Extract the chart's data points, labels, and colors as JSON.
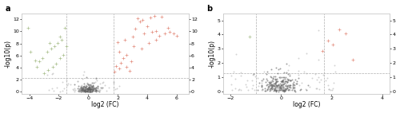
{
  "panel_a": {
    "xlim": [
      -4.5,
      6.8
    ],
    "ylim": [
      -0.3,
      13
    ],
    "xticks": [
      -4,
      -2,
      0,
      2,
      4,
      6
    ],
    "yticks": [
      0,
      2,
      4,
      6,
      8,
      10,
      12
    ],
    "xlabel": "log2 (FC)",
    "ylabel": "-log10(p)",
    "vline1": -1.5,
    "vline2": 1.7,
    "hline": 2.3,
    "label": "a",
    "red_dots": [
      [
        1.9,
        4.2
      ],
      [
        2.0,
        8.2
      ],
      [
        2.2,
        4.8
      ],
      [
        2.5,
        8.6
      ],
      [
        2.6,
        4.1
      ],
      [
        2.8,
        3.5
      ],
      [
        3.0,
        9.1
      ],
      [
        3.2,
        10.5
      ],
      [
        3.35,
        12.2
      ],
      [
        3.5,
        11.6
      ],
      [
        3.7,
        11.9
      ],
      [
        3.8,
        9.6
      ],
      [
        4.0,
        10.9
      ],
      [
        4.2,
        12.3
      ],
      [
        4.3,
        9.9
      ],
      [
        4.5,
        12.6
      ],
      [
        4.6,
        10.1
      ],
      [
        4.8,
        9.3
      ],
      [
        5.0,
        12.4
      ],
      [
        5.2,
        9.6
      ],
      [
        5.4,
        10.6
      ],
      [
        5.5,
        9.9
      ],
      [
        5.8,
        9.6
      ],
      [
        6.0,
        9.3
      ],
      [
        2.1,
        6.6
      ],
      [
        2.6,
        6.1
      ],
      [
        3.1,
        7.6
      ],
      [
        3.6,
        7.1
      ],
      [
        4.1,
        8.1
      ],
      [
        4.6,
        8.6
      ],
      [
        1.8,
        3.3
      ],
      [
        2.1,
        3.9
      ],
      [
        2.4,
        5.6
      ],
      [
        2.9,
        5.1
      ]
    ],
    "green_dots": [
      [
        -1.6,
        10.6
      ],
      [
        -1.9,
        9.1
      ],
      [
        -2.1,
        8.1
      ],
      [
        -2.3,
        7.6
      ],
      [
        -2.5,
        7.1
      ],
      [
        -2.8,
        6.6
      ],
      [
        -3.1,
        5.6
      ],
      [
        -3.3,
        5.1
      ],
      [
        -3.6,
        5.2
      ],
      [
        -4.1,
        10.6
      ],
      [
        -1.7,
        6.1
      ],
      [
        -1.9,
        5.6
      ],
      [
        -2.2,
        4.6
      ],
      [
        -2.4,
        4.1
      ],
      [
        -2.7,
        3.6
      ],
      [
        -3.0,
        3.1
      ],
      [
        -3.5,
        4.1
      ],
      [
        -3.9,
        6.6
      ],
      [
        -1.8,
        8.6
      ],
      [
        -2.6,
        8.1
      ],
      [
        -1.5,
        7.5
      ]
    ],
    "gray_cluster_seed": 42,
    "gray_cluster_count": 180,
    "gray_scatter_seed": 7,
    "gray_scatter_count": 60
  },
  "panel_b": {
    "xlim": [
      -2.3,
      4.3
    ],
    "ylim": [
      -0.15,
      5.5
    ],
    "xticks": [
      -2,
      0,
      2,
      4
    ],
    "yticks": [
      0,
      1,
      2,
      3,
      4,
      5
    ],
    "xlabel": "log2 (FC)",
    "ylabel": "-log10(p)",
    "vline1": -1.0,
    "vline2": 1.7,
    "hline": 1.3,
    "label": "b",
    "red_dots": [
      [
        1.85,
        3.6
      ],
      [
        2.05,
        3.3
      ],
      [
        2.3,
        4.35
      ],
      [
        2.55,
        4.1
      ],
      [
        1.65,
        2.85
      ],
      [
        2.85,
        2.25
      ]
    ],
    "green_dots": [
      [
        -1.25,
        3.85
      ]
    ],
    "gray_cluster_seed": 12,
    "gray_cluster_count": 220,
    "gray_scatter_seed": 99,
    "gray_scatter_count": 80
  },
  "marker": "+",
  "marker_size_colored": 7,
  "marker_size_gray": 2,
  "red_color": "#E08070",
  "green_color": "#A0B880",
  "gray_color_light": "#B0B0B0",
  "gray_color_dark": "#606060",
  "line_color": "#999999",
  "background_color": "#ffffff",
  "fontsize_label": 5.5,
  "fontsize_tick": 4.5,
  "fontsize_panel_label": 7,
  "spine_color": "#cccccc",
  "spine_lw": 0.5
}
